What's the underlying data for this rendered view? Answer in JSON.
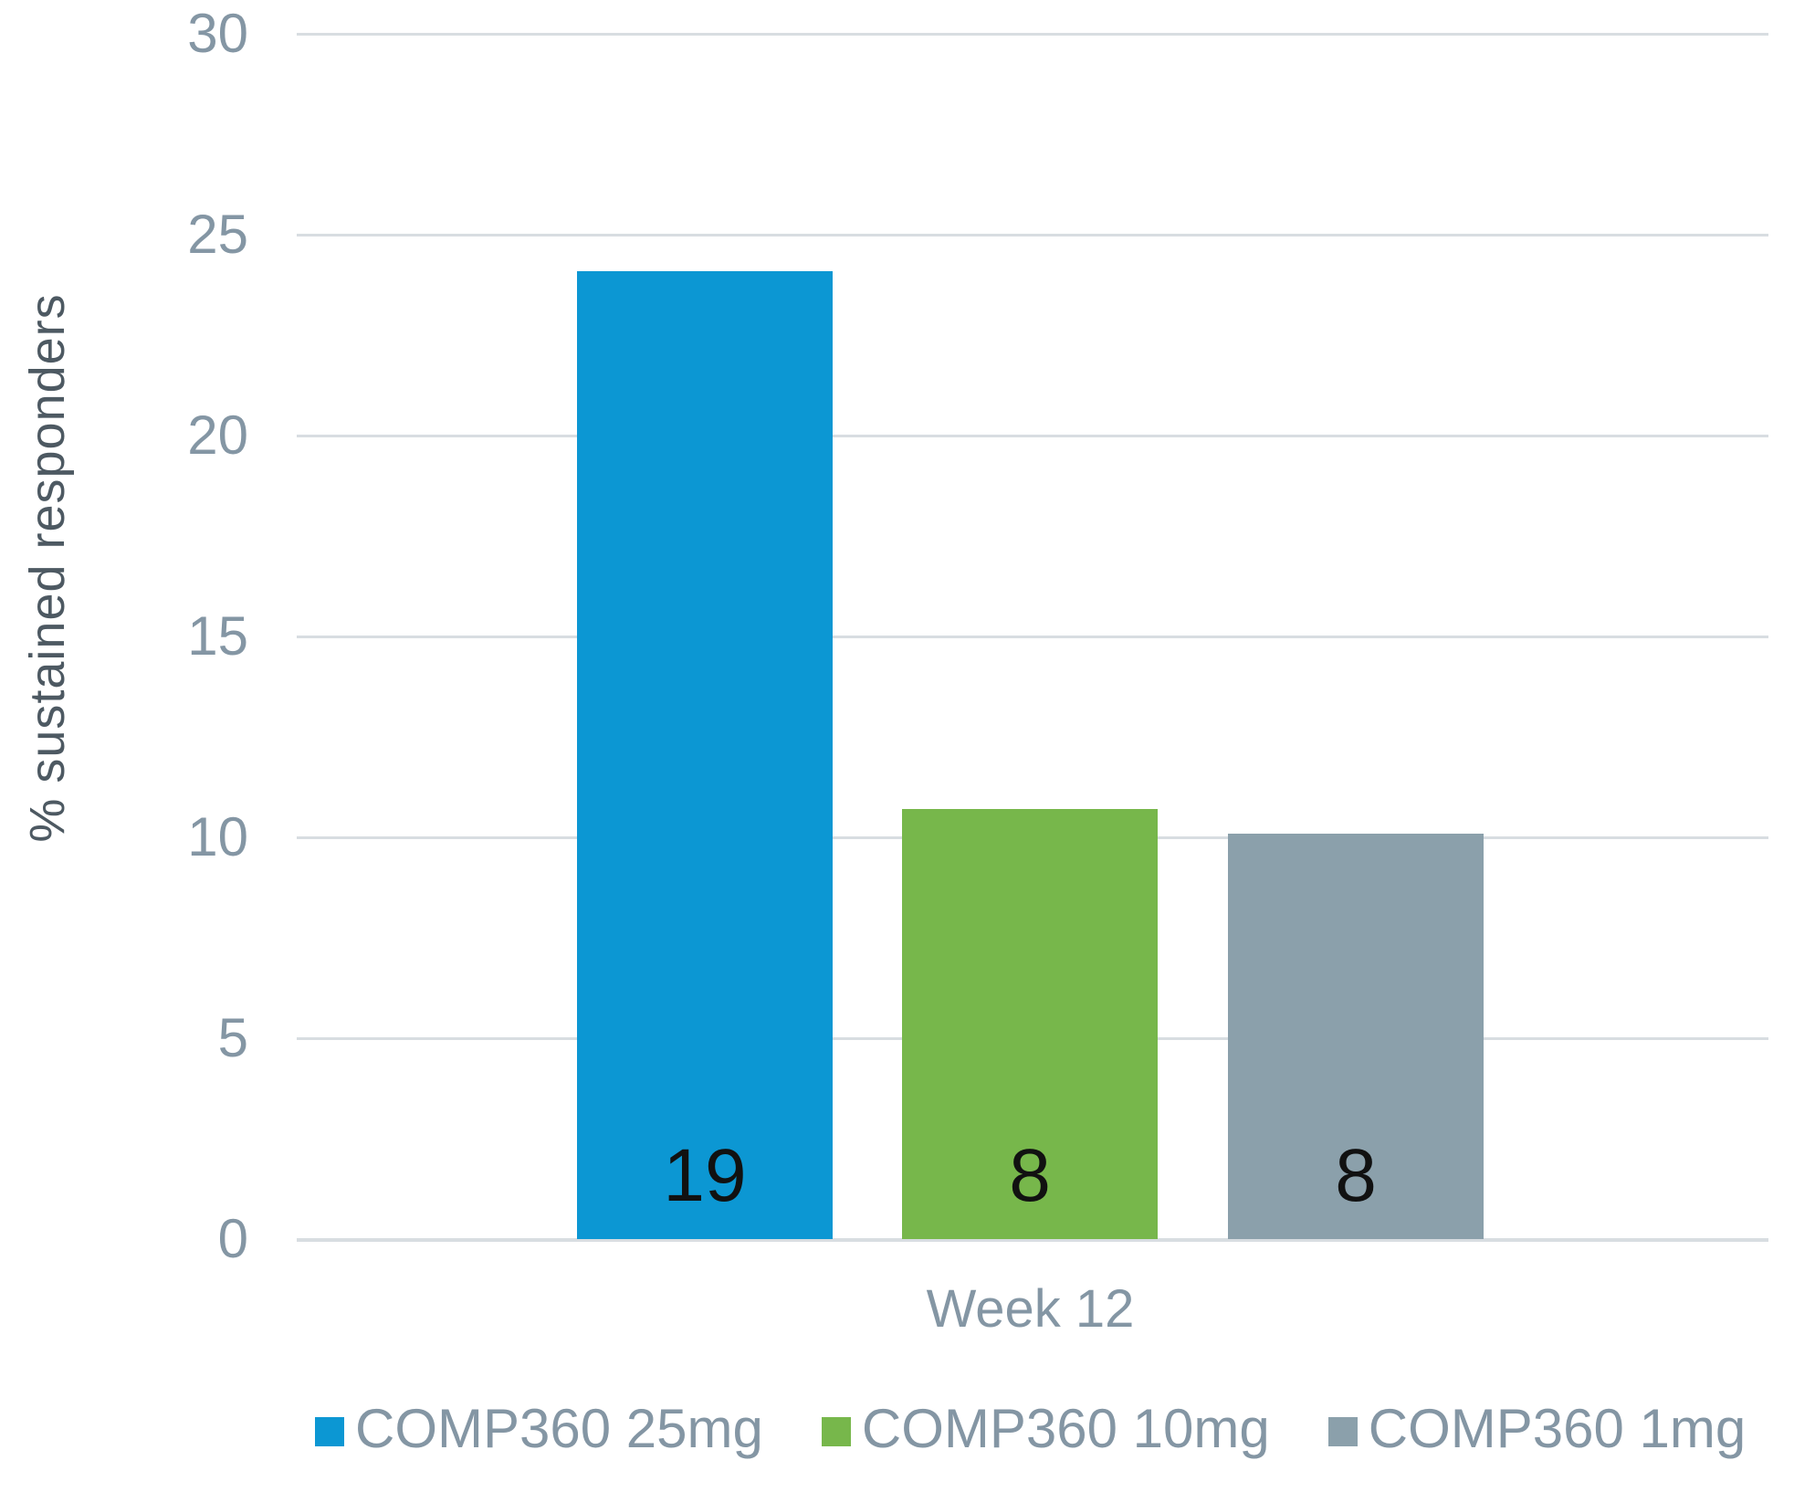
{
  "chart_data": {
    "type": "bar",
    "title": "",
    "categories": [
      "Week 12"
    ],
    "series": [
      {
        "name": "COMP360 25mg",
        "values": [
          24.1
        ],
        "color": "#0c97d3",
        "bar_label": "19"
      },
      {
        "name": "COMP360 10mg",
        "values": [
          10.7
        ],
        "color": "#77b74b",
        "bar_label": "8"
      },
      {
        "name": "COMP360 1mg",
        "values": [
          10.1
        ],
        "color": "#8ba0ab",
        "bar_label": "8"
      }
    ],
    "xlabel": "",
    "ylabel": "% sustained responders",
    "ylim": [
      0,
      30
    ],
    "yticks": [
      0,
      5,
      10,
      15,
      20,
      25,
      30
    ],
    "grid": true,
    "legend_position": "bottom",
    "bar_value_labels": [
      "19",
      "8",
      "8"
    ]
  },
  "colors": {
    "background": "#ffffff",
    "gridline": "#d8dde1",
    "tick_label": "#8496a4",
    "axis_title": "#4d5962",
    "category_label": "#8496a4",
    "legend_text": "#8496a4",
    "bar_value_label": "#111111"
  }
}
